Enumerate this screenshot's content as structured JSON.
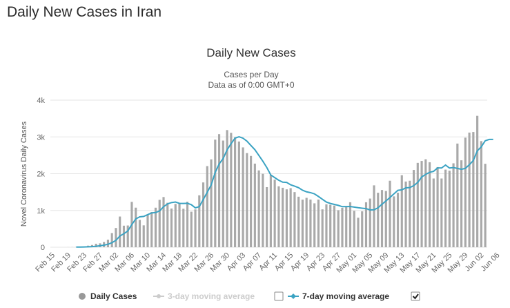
{
  "page": {
    "heading": "Daily New Cases in Iran"
  },
  "colors": {
    "bars": "#a9a9a9",
    "line7": "#3ba3c3",
    "line3": "#cccccc",
    "grid": "#e6e6e6"
  },
  "chart_data": {
    "type": "bar",
    "title": "Daily New Cases",
    "subtitle": "Cases per Day",
    "subtitle2": "Data as of 0:00 GMT+0",
    "ylabel": "Novel Coronavirus Daily Cases",
    "ylim": [
      0,
      4000
    ],
    "yticks": [
      {
        "value": 0,
        "label": "0"
      },
      {
        "value": 1000,
        "label": "1k"
      },
      {
        "value": 2000,
        "label": "2k"
      },
      {
        "value": 3000,
        "label": "3k"
      },
      {
        "value": 4000,
        "label": "4k"
      }
    ],
    "x_start": "Feb 15",
    "x_ticks": [
      "Feb 15",
      "Feb 19",
      "Feb 23",
      "Feb 27",
      "Mar 02",
      "Mar 06",
      "Mar 10",
      "Mar 14",
      "Mar 18",
      "Mar 22",
      "Mar 26",
      "Mar 30",
      "Apr 03",
      "Apr 07",
      "Apr 11",
      "Apr 15",
      "Apr 19",
      "Apr 23",
      "Apr 27",
      "May 01",
      "May 05",
      "May 09",
      "May 13",
      "May 17",
      "May 21",
      "May 25",
      "May 29",
      "Jun 02",
      "Jun 06"
    ],
    "grid": true,
    "legend_position": "bottom",
    "series": [
      {
        "name": "Daily Cases",
        "type": "bar",
        "values": [
          0,
          0,
          0,
          0,
          2,
          3,
          5,
          15,
          19,
          43,
          61,
          95,
          106,
          143,
          205,
          385,
          523,
          835,
          586,
          591,
          1234,
          1076,
          743,
          595,
          881,
          958,
          1075,
          1289,
          1365,
          1209,
          1053,
          1178,
          1192,
          1046,
          1237,
          966,
          1028,
          1411,
          1762,
          2206,
          2389,
          2926,
          3076,
          2901,
          3186,
          3110,
          2988,
          2875,
          2715,
          2560,
          2483,
          2274,
          2089,
          1997,
          1634,
          1972,
          1837,
          1657,
          1617,
          1574,
          1606,
          1499,
          1374,
          1294,
          1343,
          1297,
          1194,
          1297,
          1030,
          1168,
          1153,
          1134,
          1006,
          1073,
          1112,
          1223,
          991,
          802,
          976,
          1223,
          1323,
          1683,
          1481,
          1556,
          1529,
          1808,
          1383,
          1481,
          1958,
          1787,
          1808,
          2102,
          2294,
          2346,
          2392,
          2311,
          1869,
          2180,
          1869,
          2111,
          2080,
          2282,
          2819,
          2364,
          2979,
          3117,
          3134,
          3574,
          2886,
          2269
        ],
        "value_color": "#a9a9a9",
        "legend_color": "#999999"
      },
      {
        "name": "3-day moving average",
        "type": "line",
        "visible": false,
        "legend_color": "#cccccc"
      },
      {
        "name": "7-day moving average",
        "type": "line",
        "visible": true,
        "values": [
          null,
          null,
          null,
          null,
          null,
          null,
          4,
          5,
          7,
          11,
          16,
          25,
          39,
          56,
          81,
          123,
          188,
          304,
          367,
          442,
          617,
          770,
          827,
          838,
          886,
          932,
          943,
          988,
          1101,
          1179,
          1214,
          1229,
          1193,
          1191,
          1195,
          1156,
          1071,
          1104,
          1299,
          1496,
          1694,
          2032,
          2264,
          2411,
          2649,
          2816,
          2967,
          3004,
          2965,
          2884,
          2766,
          2652,
          2496,
          2339,
          2167,
          1965,
          1892,
          1822,
          1769,
          1762,
          1698,
          1661,
          1619,
          1550,
          1507,
          1484,
          1451,
          1380,
          1303,
          1228,
          1190,
          1164,
          1138,
          1103,
          1106,
          1108,
          1091,
          1075,
          1062,
          1050,
          1014,
          1019,
          1072,
          1169,
          1259,
          1352,
          1450,
          1547,
          1561,
          1615,
          1622,
          1676,
          1762,
          1910,
          1982,
          2036,
          2065,
          2157,
          2154,
          2235,
          2154,
          2166,
          2143,
          2119,
          2145,
          2244,
          2357,
          2621,
          2731,
          2896,
          2932,
          2932
        ],
        "value_color": "#3ba3c3",
        "legend_color": "#3ba3c3"
      }
    ],
    "legend": [
      {
        "label": "Daily Cases",
        "checkbox": null
      },
      {
        "label": "3-day moving average",
        "checkbox": "unchecked"
      },
      {
        "label": "7-day moving average",
        "checkbox": "checked"
      }
    ]
  }
}
